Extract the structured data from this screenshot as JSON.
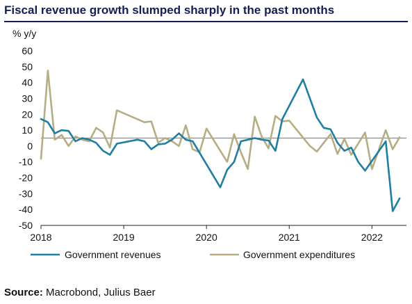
{
  "title": "Fiscal revenue growth slumped sharply in the past months",
  "source": {
    "label": "Source:",
    "text": "Macrobond, Julius Baer"
  },
  "colors": {
    "title": "#141e55",
    "revenues": "#1f7ea1",
    "expenditures": "#b5ad84",
    "zero_line": "#8a8a8a"
  },
  "chart_data": {
    "type": "line",
    "ylabel": "% y/y",
    "xlabel": "",
    "ylim": [
      -50,
      60
    ],
    "yticks": [
      60,
      50,
      40,
      30,
      20,
      10,
      0,
      -10,
      -20,
      -30,
      -40,
      -50
    ],
    "xlim": [
      "2018-01",
      "2022-06"
    ],
    "xticks": [
      "2018",
      "2019",
      "2020",
      "2021",
      "2022"
    ],
    "grid": false,
    "legend": "bottom",
    "reference_line": {
      "y": 5
    },
    "series": [
      {
        "name": "Government revenues",
        "points": [
          [
            "2018-01",
            17
          ],
          [
            "2018-02",
            15
          ],
          [
            "2018-03",
            8
          ],
          [
            "2018-04",
            10
          ],
          [
            "2018-05",
            9.5
          ],
          [
            "2018-06",
            3
          ],
          [
            "2018-07",
            5
          ],
          [
            "2018-08",
            4
          ],
          [
            "2018-09",
            2
          ],
          [
            "2018-10",
            -3
          ],
          [
            "2018-11",
            -5.5
          ],
          [
            "2018-12",
            1.5
          ],
          [
            "2019-03",
            4
          ],
          [
            "2019-04",
            3
          ],
          [
            "2019-05",
            -2
          ],
          [
            "2019-06",
            1
          ],
          [
            "2019-07",
            1.5
          ],
          [
            "2019-08",
            4
          ],
          [
            "2019-09",
            8
          ],
          [
            "2019-10",
            4
          ],
          [
            "2019-11",
            3
          ],
          [
            "2020-03",
            -26
          ],
          [
            "2020-04",
            -15
          ],
          [
            "2020-05",
            -10
          ],
          [
            "2020-06",
            3
          ],
          [
            "2020-07",
            4
          ],
          [
            "2020-08",
            5
          ],
          [
            "2020-09",
            4
          ],
          [
            "2020-10",
            3.5
          ],
          [
            "2020-11",
            -3
          ],
          [
            "2020-12",
            17
          ],
          [
            "2021-03",
            42
          ],
          [
            "2021-05",
            18
          ],
          [
            "2021-06",
            11.5
          ],
          [
            "2021-07",
            10.5
          ],
          [
            "2021-08",
            2
          ],
          [
            "2021-09",
            -3
          ],
          [
            "2021-10",
            -1
          ],
          [
            "2021-11",
            -10
          ],
          [
            "2021-12",
            -15.5
          ],
          [
            "2022-03",
            3
          ],
          [
            "2022-04",
            -41
          ],
          [
            "2022-05",
            -33
          ]
        ]
      },
      {
        "name": "Government expenditures",
        "points": [
          [
            "2018-01",
            -8
          ],
          [
            "2018-02",
            47.5
          ],
          [
            "2018-03",
            4
          ],
          [
            "2018-04",
            7
          ],
          [
            "2018-05",
            0
          ],
          [
            "2018-06",
            6
          ],
          [
            "2018-07",
            4
          ],
          [
            "2018-08",
            3
          ],
          [
            "2018-09",
            11.5
          ],
          [
            "2018-10",
            8.5
          ],
          [
            "2018-11",
            -1
          ],
          [
            "2018-12",
            22.5
          ],
          [
            "2019-04",
            15
          ],
          [
            "2019-05",
            15.5
          ],
          [
            "2019-06",
            2
          ],
          [
            "2019-07",
            5
          ],
          [
            "2019-08",
            3
          ],
          [
            "2019-09",
            0
          ],
          [
            "2019-10",
            13
          ],
          [
            "2019-11",
            -2
          ],
          [
            "2019-12",
            -4
          ],
          [
            "2020-01",
            11
          ],
          [
            "2020-04",
            -10
          ],
          [
            "2020-05",
            7.5
          ],
          [
            "2020-06",
            -4
          ],
          [
            "2020-07",
            -14.5
          ],
          [
            "2020-08",
            18.5
          ],
          [
            "2020-09",
            6
          ],
          [
            "2020-10",
            -1.5
          ],
          [
            "2020-11",
            19
          ],
          [
            "2020-12",
            15.5
          ],
          [
            "2021-01",
            16
          ],
          [
            "2021-04",
            0
          ],
          [
            "2021-05",
            -3.5
          ],
          [
            "2021-07",
            7.5
          ],
          [
            "2021-08",
            -5
          ],
          [
            "2021-09",
            4.5
          ],
          [
            "2021-10",
            -5.5
          ],
          [
            "2021-11",
            1.5
          ],
          [
            "2021-12",
            8.5
          ],
          [
            "2022-01",
            -14.5
          ],
          [
            "2022-03",
            10
          ],
          [
            "2022-04",
            -2
          ],
          [
            "2022-05",
            5.5
          ]
        ]
      }
    ]
  }
}
